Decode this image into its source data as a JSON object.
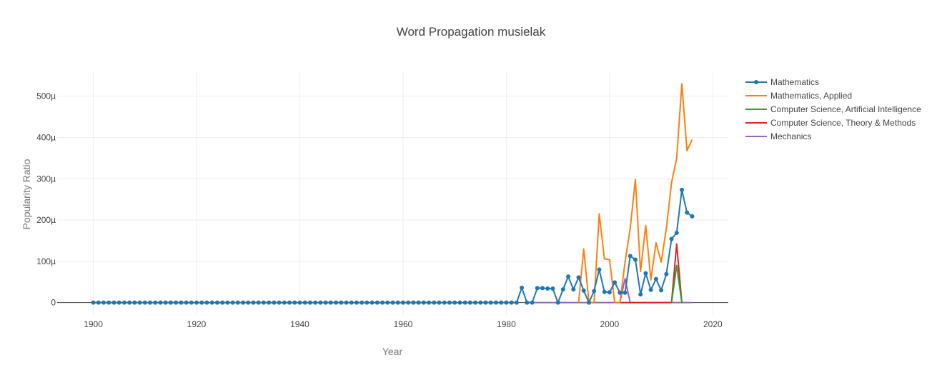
{
  "chart_data": {
    "type": "line",
    "title": "Word Propagation musielak",
    "xlabel": "Year",
    "ylabel": "Popularity Ratio",
    "xlim": [
      1893,
      2023
    ],
    "ylim": [
      -3e-05,
      0.00056
    ],
    "xticks": [
      1900,
      1920,
      1940,
      1960,
      1980,
      2000,
      2020
    ],
    "xtick_labels": [
      "1900",
      "1920",
      "1940",
      "1960",
      "1980",
      "2000",
      "2020"
    ],
    "yticks": [
      0,
      0.0001,
      0.0002,
      0.0003,
      0.0004,
      0.0005
    ],
    "ytick_labels": [
      "0",
      "100µ",
      "200µ",
      "300µ",
      "400µ",
      "500µ"
    ],
    "grid": true,
    "legend_position": "top-right",
    "series": [
      {
        "name": "Mathematics",
        "color": "#1f77b4",
        "markers": true,
        "x": [
          1900,
          1901,
          1902,
          1903,
          1904,
          1905,
          1906,
          1907,
          1908,
          1909,
          1910,
          1911,
          1912,
          1913,
          1914,
          1915,
          1916,
          1917,
          1918,
          1919,
          1920,
          1921,
          1922,
          1923,
          1924,
          1925,
          1926,
          1927,
          1928,
          1929,
          1930,
          1931,
          1932,
          1933,
          1934,
          1935,
          1936,
          1937,
          1938,
          1939,
          1940,
          1941,
          1942,
          1943,
          1944,
          1945,
          1946,
          1947,
          1948,
          1949,
          1950,
          1951,
          1952,
          1953,
          1954,
          1955,
          1956,
          1957,
          1958,
          1959,
          1960,
          1961,
          1962,
          1963,
          1964,
          1965,
          1966,
          1967,
          1968,
          1969,
          1970,
          1971,
          1972,
          1973,
          1974,
          1975,
          1976,
          1977,
          1978,
          1979,
          1980,
          1981,
          1982,
          1983,
          1984,
          1985,
          1986,
          1987,
          1988,
          1989,
          1990,
          1991,
          1992,
          1993,
          1994,
          1995,
          1996,
          1997,
          1998,
          1999,
          2000,
          2001,
          2002,
          2003,
          2004,
          2005,
          2006,
          2007,
          2008,
          2009,
          2010,
          2011,
          2012,
          2013,
          2014,
          2015,
          2016
        ],
        "y": [
          0,
          0,
          0,
          0,
          0,
          0,
          0,
          0,
          0,
          0,
          0,
          0,
          0,
          0,
          0,
          0,
          0,
          0,
          0,
          0,
          0,
          0,
          0,
          0,
          0,
          0,
          0,
          0,
          0,
          0,
          0,
          0,
          0,
          0,
          0,
          0,
          0,
          0,
          0,
          0,
          0,
          0,
          0,
          0,
          0,
          0,
          0,
          0,
          0,
          0,
          0,
          0,
          0,
          0,
          0,
          0,
          0,
          0,
          0,
          0,
          0,
          0,
          0,
          0,
          0,
          0,
          0,
          0,
          0,
          0,
          0,
          0,
          0,
          0,
          0,
          0,
          0,
          0,
          0,
          0,
          0,
          0,
          0,
          3.6e-05,
          0,
          0,
          3.5e-05,
          3.5e-05,
          3.4e-05,
          3.4e-05,
          0,
          3.2e-05,
          6.3e-05,
          3.2e-05,
          6.1e-05,
          2.9e-05,
          0,
          2.8e-05,
          8e-05,
          2.6e-05,
          2.5e-05,
          4.9e-05,
          2.4e-05,
          2.4e-05,
          0.000113,
          0.000104,
          2e-05,
          7.1e-05,
          3.1e-05,
          5.7e-05,
          3e-05,
          6.9e-05,
          0.000154,
          0.000169,
          0.000273,
          0.000218,
          0.000209
        ]
      },
      {
        "name": "Mathematics, Applied",
        "color": "#ff7f0e",
        "markers": false,
        "x": [
          1994,
          1995,
          1996,
          1997,
          1998,
          1999,
          2000,
          2001,
          2002,
          2003,
          2004,
          2005,
          2006,
          2007,
          2008,
          2009,
          2010,
          2011,
          2012,
          2013,
          2014,
          2015,
          2016
        ],
        "y": [
          0,
          0.00013,
          0,
          0,
          0.000215,
          0.000106,
          0.000104,
          0,
          0,
          9.8e-05,
          0.00018,
          0.000298,
          7.5e-05,
          0.000187,
          5.5e-05,
          0.000145,
          9.8e-05,
          0.00018,
          0.00029,
          0.00035,
          0.00053,
          0.000368,
          0.000395
        ]
      },
      {
        "name": "Computer Science, Artificial Intelligence",
        "color": "#2ca02c",
        "markers": false,
        "x": [
          2012,
          2013,
          2014
        ],
        "y": [
          0,
          9e-05,
          0
        ]
      },
      {
        "name": "Computer Science, Theory & Methods",
        "color": "#d62728",
        "markers": false,
        "x": [
          2002,
          2003,
          2004,
          2005,
          2006,
          2007,
          2008,
          2009,
          2010,
          2011,
          2012,
          2013,
          2014
        ],
        "y": [
          0,
          0,
          0,
          0,
          0,
          0,
          0,
          0,
          0,
          0,
          0,
          0.000142,
          0
        ]
      },
      {
        "name": "Mechanics",
        "color": "#9467bd",
        "markers": false,
        "x": [
          1984,
          1985,
          1986,
          1987,
          1988,
          1989,
          1990,
          1991,
          1992,
          1993,
          1994,
          1995,
          1996,
          1997,
          1998,
          1999,
          2000,
          2001,
          2002,
          2003,
          2004,
          2005,
          2006,
          2007,
          2008,
          2009,
          2010,
          2011,
          2012,
          2013,
          2014,
          2015,
          2016
        ],
        "y": [
          0,
          0,
          0,
          0,
          0,
          0,
          0,
          0,
          0,
          0,
          0,
          0,
          0,
          0,
          0,
          0,
          0,
          0,
          0,
          5.8e-05,
          0,
          0,
          0,
          0,
          0,
          0,
          0,
          0,
          0,
          0,
          0,
          0,
          0
        ]
      }
    ]
  }
}
